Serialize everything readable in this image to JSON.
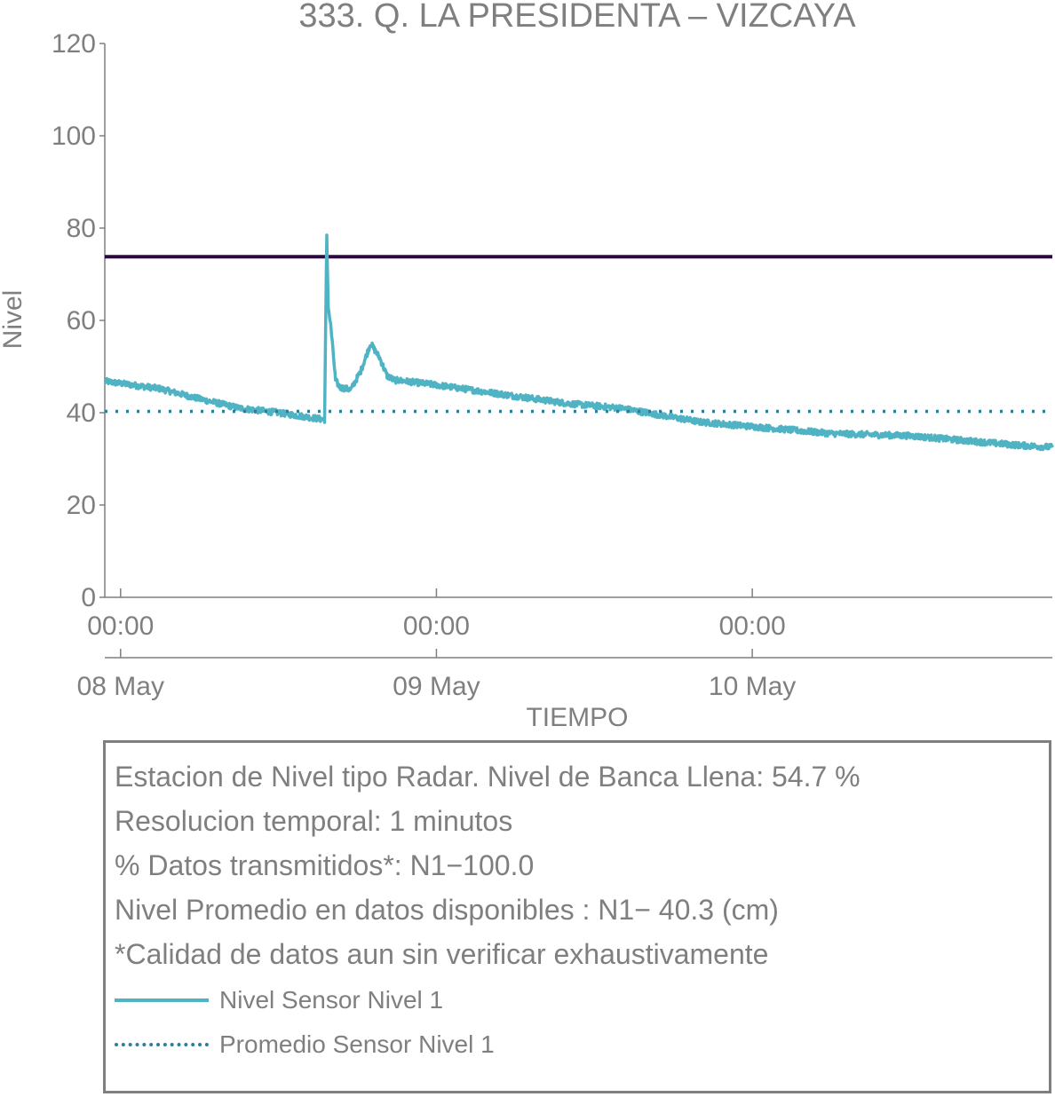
{
  "chart_data": {
    "type": "line",
    "title": "333. Q. LA PRESIDENTA – VIZCAYA",
    "xlabel": "TIEMPO",
    "ylabel": "Nivel",
    "ylim": [
      0,
      120
    ],
    "yticks": [
      "0",
      "20",
      "40",
      "60",
      "80",
      "100",
      "120"
    ],
    "xlim_days": [
      -0.05,
      2.95
    ],
    "xticks_time": [
      "00:00",
      "00:00",
      "00:00"
    ],
    "xticks_date": [
      "08 May",
      "09 May",
      "10 May"
    ],
    "grid": false,
    "reference_line": {
      "value": 73.8,
      "color": "#2d0a3e"
    },
    "series": [
      {
        "name": "Nivel Sensor Nivel 1",
        "style": "solid",
        "color": "#4fb3c4",
        "x": [
          "07 May 22:50",
          "08 May 03:00",
          "08 May 06:00",
          "08 May 09:00",
          "08 May 12:00",
          "08 May 15:30",
          "08 May 15:40",
          "08 May 15:47",
          "08 May 16:00",
          "08 May 16:20",
          "08 May 16:40",
          "08 May 17:30",
          "08 May 18:15",
          "08 May 19:00",
          "08 May 19:40",
          "08 May 20:15",
          "08 May 20:50",
          "08 May 21:10",
          "08 May 24:00",
          "09 May 05:00",
          "09 May 10:00",
          "09 May 14:00",
          "09 May 20:00",
          "10 May 00:00",
          "10 May 06:00",
          "10 May 12:00",
          "10 May 16:00",
          "10 May 20:00",
          "10 May 22:50"
        ],
        "values": [
          46.8,
          45.2,
          43,
          41,
          40,
          38.5,
          78,
          63,
          58,
          47,
          45.5,
          45,
          49,
          55,
          52,
          48,
          47,
          47,
          46,
          44,
          42,
          41,
          38,
          37,
          35.5,
          35,
          34,
          33,
          32.5
        ]
      },
      {
        "name": "Promedio Sensor Nivel 1",
        "style": "dotted",
        "color": "#2e7d9b",
        "constant": 40.3
      }
    ]
  },
  "info": {
    "line1": "Estacion de Nivel tipo Radar. Nivel de Banca Llena: 54.7 %",
    "line2": "Resolucion temporal: 1 minutos",
    "line3": "% Datos transmitidos*: N1−100.0",
    "line4": "Nivel Promedio en datos disponibles : N1− 40.3 (cm)",
    "line5": "*Calidad de datos aun sin verificar exhaustivamente"
  }
}
